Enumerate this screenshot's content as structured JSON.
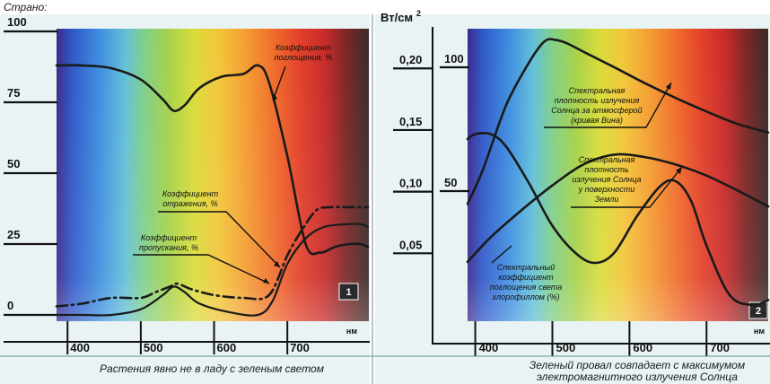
{
  "header_fragment": "Страно:",
  "chart_data": [
    {
      "type": "line",
      "panel_label": "1",
      "caption": "Растения явно не в ладу с зеленым светом",
      "x_unit": "нм",
      "x_ticks": [
        "400",
        "500",
        "600",
        "700"
      ],
      "y_ticks": [
        "0",
        "25",
        "50",
        "75",
        "100"
      ],
      "xlim": [
        385,
        810
      ],
      "ylim": [
        0,
        100
      ],
      "series": [
        {
          "name": "Коэффициент поглощения, %",
          "style": "solid",
          "x": [
            385,
            420,
            460,
            500,
            530,
            545,
            560,
            580,
            610,
            640,
            660,
            675,
            700,
            725,
            745,
            765,
            785,
            800,
            810
          ],
          "y": [
            88,
            88,
            87,
            83,
            76,
            72,
            74,
            80,
            84,
            85,
            88,
            82,
            56,
            25,
            22,
            24,
            25,
            25,
            24
          ]
        },
        {
          "name": "Коэффициент отражения, %",
          "style": "dashdot",
          "x": [
            385,
            420,
            460,
            500,
            520,
            540,
            550,
            570,
            600,
            640,
            675,
            700,
            720,
            740,
            760,
            780,
            800,
            810
          ],
          "y": [
            3,
            4,
            6,
            6,
            8,
            10,
            11,
            9,
            7,
            6,
            7,
            21,
            30,
            37,
            38,
            38,
            38,
            38
          ]
        },
        {
          "name": "Коэффициент пропускания, %",
          "style": "solid-thin",
          "x": [
            385,
            420,
            460,
            500,
            530,
            545,
            560,
            580,
            620,
            660,
            680,
            700,
            725,
            750,
            780,
            800,
            810
          ],
          "y": [
            0,
            0,
            0,
            2,
            7,
            10,
            8,
            4,
            1,
            0,
            5,
            18,
            27,
            31,
            32,
            32,
            31
          ]
        }
      ],
      "annotations": [
        {
          "text": "Коэффициент",
          "series": "Коэффициент поглощения, %"
        },
        {
          "text": "поглощения, %",
          "series": "Коэффициент поглощения, %"
        },
        {
          "text": "Коэффициент",
          "series": "Коэффициент отражения, %"
        },
        {
          "text": "отражения, %",
          "series": "Коэффициент отражения, %"
        },
        {
          "text": "Коэффициент",
          "series": "Коэффициент пропускания, %"
        },
        {
          "text": "пропускания, %",
          "series": "Коэффициент пропускания, %"
        }
      ]
    },
    {
      "type": "line",
      "panel_label": "2",
      "caption": "Зеленый провал совпадает с максимумом электромагнитного излучения Солнца",
      "caption_lines": [
        "Зеленый провал совпадает с максимумом",
        "электромагнитного излучения Солнца"
      ],
      "y_unit": "Вт/см²",
      "x_unit": "нм",
      "x_ticks": [
        "400",
        "500",
        "600",
        "700"
      ],
      "y_ticks": [
        "0,05",
        "0,10",
        "0,15",
        "0,20"
      ],
      "secondary_y_ticks": [
        "50",
        "100"
      ],
      "xlim": [
        390,
        780
      ],
      "ylim": [
        0,
        0.23
      ],
      "series": [
        {
          "name": "Спектральная плотность излучения Солнца за атмосферой (кривая Вина)",
          "axis": "left",
          "x": [
            390,
            410,
            440,
            470,
            490,
            505,
            520,
            545,
            580,
            620,
            660,
            700,
            740,
            780
          ],
          "y": [
            0.09,
            0.118,
            0.17,
            0.205,
            0.222,
            0.223,
            0.22,
            0.212,
            0.201,
            0.188,
            0.176,
            0.165,
            0.155,
            0.148
          ]
        },
        {
          "name": "Спектральная плотность излучения Солнца у поверхности Земли",
          "axis": "left",
          "x": [
            390,
            420,
            460,
            500,
            540,
            580,
            620,
            660,
            700,
            740,
            780
          ],
          "y": [
            0.043,
            0.063,
            0.085,
            0.105,
            0.122,
            0.13,
            0.128,
            0.122,
            0.113,
            0.101,
            0.088
          ]
        },
        {
          "name": "Спектральный коэффициент поглощения света хлорофиллом (%)",
          "axis": "right",
          "x": [
            390,
            400,
            420,
            440,
            470,
            500,
            530,
            555,
            580,
            610,
            640,
            660,
            680,
            700,
            730,
            760,
            780
          ],
          "y": [
            71,
            73,
            73,
            68,
            53,
            36,
            25,
            21,
            25,
            40,
            52,
            54,
            46,
            28,
            8,
            4,
            6
          ]
        }
      ],
      "annotations": [
        {
          "text": "Спектральная",
          "series": "Спектральная плотность излучения Солнца за атмосферой (кривая Вина)"
        },
        {
          "text": "плотность излучения",
          "series": "Спектральная плотность излучения Солнца за атмосферой (кривая Вина)"
        },
        {
          "text": "Солнца за атмосферой",
          "series": "Спектральная плотность излучения Солнца за атмосферой (кривая Вина)"
        },
        {
          "text": "(кривая Вина)",
          "series": "Спектральная плотность излучения Солнца за атмосферой (кривая Вина)"
        },
        {
          "text": "Спектральная",
          "series": "Спектральная плотность излучения Солнца у поверхности Земли"
        },
        {
          "text": "плотность",
          "series": "Спектральная плотность излучения Солнца у поверхности Земли"
        },
        {
          "text": "излучения Солнца",
          "series": "Спектральная плотность излучения Солнца у поверхности Земли"
        },
        {
          "text": "у поверхности",
          "series": "Спектральная плотность излучения Солнца у поверхности Земли"
        },
        {
          "text": "Земли",
          "series": "Спектральная плотность излучения Солнца у поверхности Земли"
        },
        {
          "text": "Спектральный",
          "series": "Спектральный коэффициент поглощения света хлорофиллом (%)"
        },
        {
          "text": "коэффициент",
          "series": "Спектральный коэффициент поглощения света хлорофиллом (%)"
        },
        {
          "text": "поглощения света",
          "series": "Спектральный коэффициент поглощения света хлорофиллом (%)"
        },
        {
          "text": "хлорофиллом (%)",
          "series": "Спектральный коэффициент поглощения света хлорофиллом (%)"
        }
      ]
    }
  ]
}
